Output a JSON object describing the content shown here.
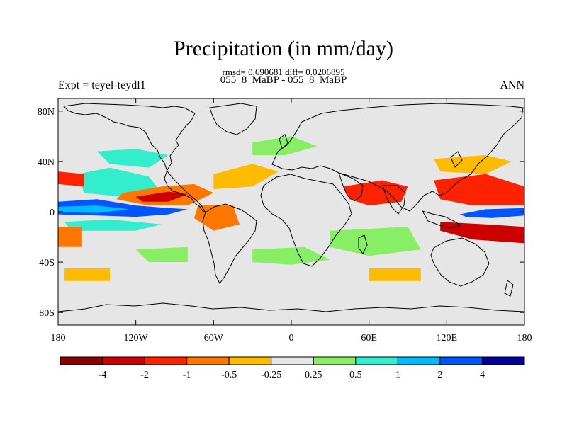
{
  "chart_data": {
    "type": "heatmap",
    "title": "Precipitation (in mm/day)",
    "stats": "rmsd= 0.690681 diff= 0.0206895",
    "subtitle": "055_8_MaBP - 055_8_MaBP",
    "left_label": "Expt = teyel-teydl1",
    "right_label": "ANN",
    "x_range": [
      -180,
      180
    ],
    "y_range": [
      -90,
      90
    ],
    "x_ticks": [
      {
        "value": -180,
        "label": "180"
      },
      {
        "value": -120,
        "label": "120W"
      },
      {
        "value": -60,
        "label": "60W"
      },
      {
        "value": 0,
        "label": "0"
      },
      {
        "value": 60,
        "label": "60E"
      },
      {
        "value": 120,
        "label": "120E"
      },
      {
        "value": 180,
        "label": "180"
      }
    ],
    "y_ticks": [
      {
        "value": 80,
        "label": "80N"
      },
      {
        "value": 40,
        "label": "40N"
      },
      {
        "value": 0,
        "label": "0"
      },
      {
        "value": -40,
        "label": "40S"
      },
      {
        "value": -80,
        "label": "80S"
      }
    ],
    "colorbar": {
      "colors": [
        "#8b0000",
        "#cc0000",
        "#ff2200",
        "#ff7700",
        "#ffbb00",
        "#e6e6e6",
        "#88ee66",
        "#33eecc",
        "#00bbff",
        "#0055ff",
        "#000099"
      ],
      "labels": [
        "-4",
        "-2",
        "-1",
        "-0.5",
        "-0.25",
        "0.25",
        "0.5",
        "1",
        "2",
        "4"
      ]
    },
    "anomaly_regions": [
      {
        "name": "tropical-pacific-wet-band",
        "level": 9,
        "points": [
          [
            -180,
            8
          ],
          [
            -150,
            10
          ],
          [
            -120,
            5
          ],
          [
            -95,
            3
          ],
          [
            -80,
            2
          ],
          [
            -95,
            -2
          ],
          [
            -120,
            -4
          ],
          [
            -150,
            -3
          ],
          [
            -180,
            -2
          ]
        ]
      },
      {
        "name": "central-pacific-wet-core",
        "level": 8,
        "points": [
          [
            -180,
            4
          ],
          [
            -150,
            5
          ],
          [
            -125,
            2
          ],
          [
            -150,
            -1
          ],
          [
            -180,
            0
          ]
        ]
      },
      {
        "name": "pacific-north-wet",
        "level": 7,
        "points": [
          [
            -165,
            30
          ],
          [
            -140,
            35
          ],
          [
            -110,
            28
          ],
          [
            -100,
            15
          ],
          [
            -130,
            12
          ],
          [
            -160,
            15
          ]
        ]
      },
      {
        "name": "pacific-south-wet",
        "level": 7,
        "points": [
          [
            -175,
            -8
          ],
          [
            -140,
            -6
          ],
          [
            -100,
            -10
          ],
          [
            -120,
            -15
          ],
          [
            -170,
            -15
          ]
        ]
      },
      {
        "name": "north-pacific-dry-band",
        "level": 3,
        "points": [
          [
            -130,
            15
          ],
          [
            -100,
            20
          ],
          [
            -75,
            22
          ],
          [
            -60,
            15
          ],
          [
            -80,
            5
          ],
          [
            -110,
            5
          ],
          [
            -135,
            10
          ]
        ]
      },
      {
        "name": "north-pacific-dry-core",
        "level": 1,
        "points": [
          [
            -120,
            12
          ],
          [
            -95,
            16
          ],
          [
            -80,
            14
          ],
          [
            -95,
            8
          ],
          [
            -115,
            8
          ]
        ]
      },
      {
        "name": "west-pacific-dry-west",
        "level": 2,
        "points": [
          [
            -180,
            32
          ],
          [
            -160,
            30
          ],
          [
            -160,
            20
          ],
          [
            -180,
            22
          ]
        ]
      },
      {
        "name": "west-pacific-dry-south",
        "level": 3,
        "points": [
          [
            -180,
            -12
          ],
          [
            -162,
            -12
          ],
          [
            -162,
            -28
          ],
          [
            -180,
            -28
          ]
        ]
      },
      {
        "name": "north-atlantic-dry",
        "level": 4,
        "points": [
          [
            -60,
            30
          ],
          [
            -30,
            38
          ],
          [
            -10,
            32
          ],
          [
            -30,
            20
          ],
          [
            -60,
            18
          ]
        ]
      },
      {
        "name": "amazon-dry",
        "level": 3,
        "points": [
          [
            -72,
            5
          ],
          [
            -45,
            5
          ],
          [
            -40,
            -10
          ],
          [
            -60,
            -15
          ],
          [
            -75,
            -5
          ]
        ]
      },
      {
        "name": "maritime-continent-wet",
        "level": 9,
        "points": [
          [
            130,
            -2
          ],
          [
            150,
            2
          ],
          [
            180,
            3
          ],
          [
            180,
            -3
          ],
          [
            155,
            -5
          ],
          [
            135,
            -4
          ]
        ]
      },
      {
        "name": "west-pacific-dry-north",
        "level": 2,
        "points": [
          [
            110,
            25
          ],
          [
            150,
            30
          ],
          [
            180,
            20
          ],
          [
            180,
            5
          ],
          [
            140,
            5
          ],
          [
            115,
            10
          ]
        ]
      },
      {
        "name": "west-pacific-dry-southband",
        "level": 1,
        "points": [
          [
            115,
            -8
          ],
          [
            150,
            -10
          ],
          [
            180,
            -12
          ],
          [
            180,
            -25
          ],
          [
            140,
            -22
          ],
          [
            115,
            -15
          ]
        ]
      },
      {
        "name": "arabian-sea-dry",
        "level": 2,
        "points": [
          [
            40,
            20
          ],
          [
            70,
            25
          ],
          [
            90,
            20
          ],
          [
            85,
            8
          ],
          [
            60,
            5
          ],
          [
            45,
            10
          ]
        ]
      },
      {
        "name": "southern-ocean-wet-1",
        "level": 6,
        "points": [
          [
            -120,
            -30
          ],
          [
            -80,
            -28
          ],
          [
            -80,
            -40
          ],
          [
            -110,
            -40
          ]
        ]
      },
      {
        "name": "southern-ocean-wet-2",
        "level": 6,
        "points": [
          [
            -30,
            -30
          ],
          [
            10,
            -28
          ],
          [
            30,
            -38
          ],
          [
            0,
            -42
          ],
          [
            -30,
            -40
          ]
        ]
      },
      {
        "name": "south-indian-wet",
        "level": 6,
        "points": [
          [
            30,
            -15
          ],
          [
            90,
            -12
          ],
          [
            100,
            -30
          ],
          [
            60,
            -35
          ],
          [
            30,
            -28
          ]
        ]
      },
      {
        "name": "north-pacific-midlat-wet",
        "level": 7,
        "points": [
          [
            -150,
            48
          ],
          [
            -120,
            50
          ],
          [
            -95,
            45
          ],
          [
            -110,
            35
          ],
          [
            -140,
            38
          ]
        ]
      },
      {
        "name": "north-atlantic-midlat-wet",
        "level": 6,
        "points": [
          [
            -30,
            55
          ],
          [
            0,
            60
          ],
          [
            20,
            52
          ],
          [
            -5,
            45
          ],
          [
            -30,
            45
          ]
        ]
      },
      {
        "name": "east-asia-dry",
        "level": 4,
        "points": [
          [
            110,
            42
          ],
          [
            150,
            45
          ],
          [
            170,
            40
          ],
          [
            150,
            30
          ],
          [
            115,
            32
          ]
        ]
      },
      {
        "name": "south-pacific-dry",
        "level": 4,
        "points": [
          [
            -175,
            -45
          ],
          [
            -140,
            -45
          ],
          [
            -140,
            -55
          ],
          [
            -175,
            -55
          ]
        ]
      },
      {
        "name": "indian-ocean-dry-south",
        "level": 4,
        "points": [
          [
            60,
            -45
          ],
          [
            100,
            -45
          ],
          [
            100,
            -55
          ],
          [
            60,
            -55
          ]
        ]
      }
    ]
  }
}
